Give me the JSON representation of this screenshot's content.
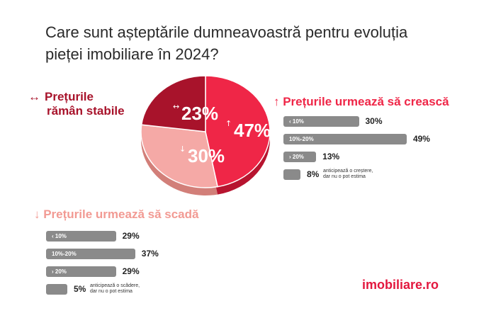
{
  "title": {
    "line1": "Care sunt așteptările dumneavoastră pentru evoluția",
    "line2": "pieței imobiliare în 2024?"
  },
  "headings": {
    "stable": {
      "arrow": "↔",
      "line1": "Prețurile",
      "line2": "rămân stabile"
    },
    "up": "↑ Prețurile urmează să crească",
    "down": "↓ Prețurile urmează să scadă"
  },
  "chart_data": [
    {
      "type": "pie",
      "categories": [
        "Prețurile urmează să crească",
        "Prețurile urmează să scadă",
        "Prețurile rămân stabile"
      ],
      "values": [
        47,
        30,
        23
      ],
      "labels": [
        "47%",
        "30%",
        "23%"
      ],
      "arrows": [
        "↑",
        "↓",
        "↔"
      ],
      "colors": [
        "#ef2647",
        "#f5a9a6",
        "#a8132b"
      ]
    },
    {
      "type": "bar",
      "title": "↑ Prețurile urmează să crească",
      "categories": [
        "< 10%",
        "10%-20%",
        "> 20%",
        "anticipează o creștere, dar nu o pot estima"
      ],
      "bar_labels": [
        "‹ 10%",
        "10%-20%",
        "› 20%",
        ""
      ],
      "values": [
        30,
        49,
        13,
        8
      ],
      "value_labels": [
        "30%",
        "49%",
        "13%",
        "8%"
      ],
      "note": [
        "anticipează o creștere,",
        "dar nu o pot estima"
      ]
    },
    {
      "type": "bar",
      "title": "↓ Prețurile urmează să scadă",
      "categories": [
        "< 10%",
        "10%-20%",
        "> 20%",
        "anticipează o scădere, dar nu o pot estima"
      ],
      "bar_labels": [
        "‹ 10%",
        "10%-20%",
        "› 20%",
        ""
      ],
      "values": [
        29,
        37,
        29,
        5
      ],
      "value_labels": [
        "29%",
        "37%",
        "29%",
        "5%"
      ],
      "note": [
        "anticipează o scădere,",
        "dar nu o pot estima"
      ]
    }
  ],
  "colors": {
    "bar": "#8a8a8a",
    "brand": "#e3173e"
  },
  "logo": "imobiliare.ro"
}
